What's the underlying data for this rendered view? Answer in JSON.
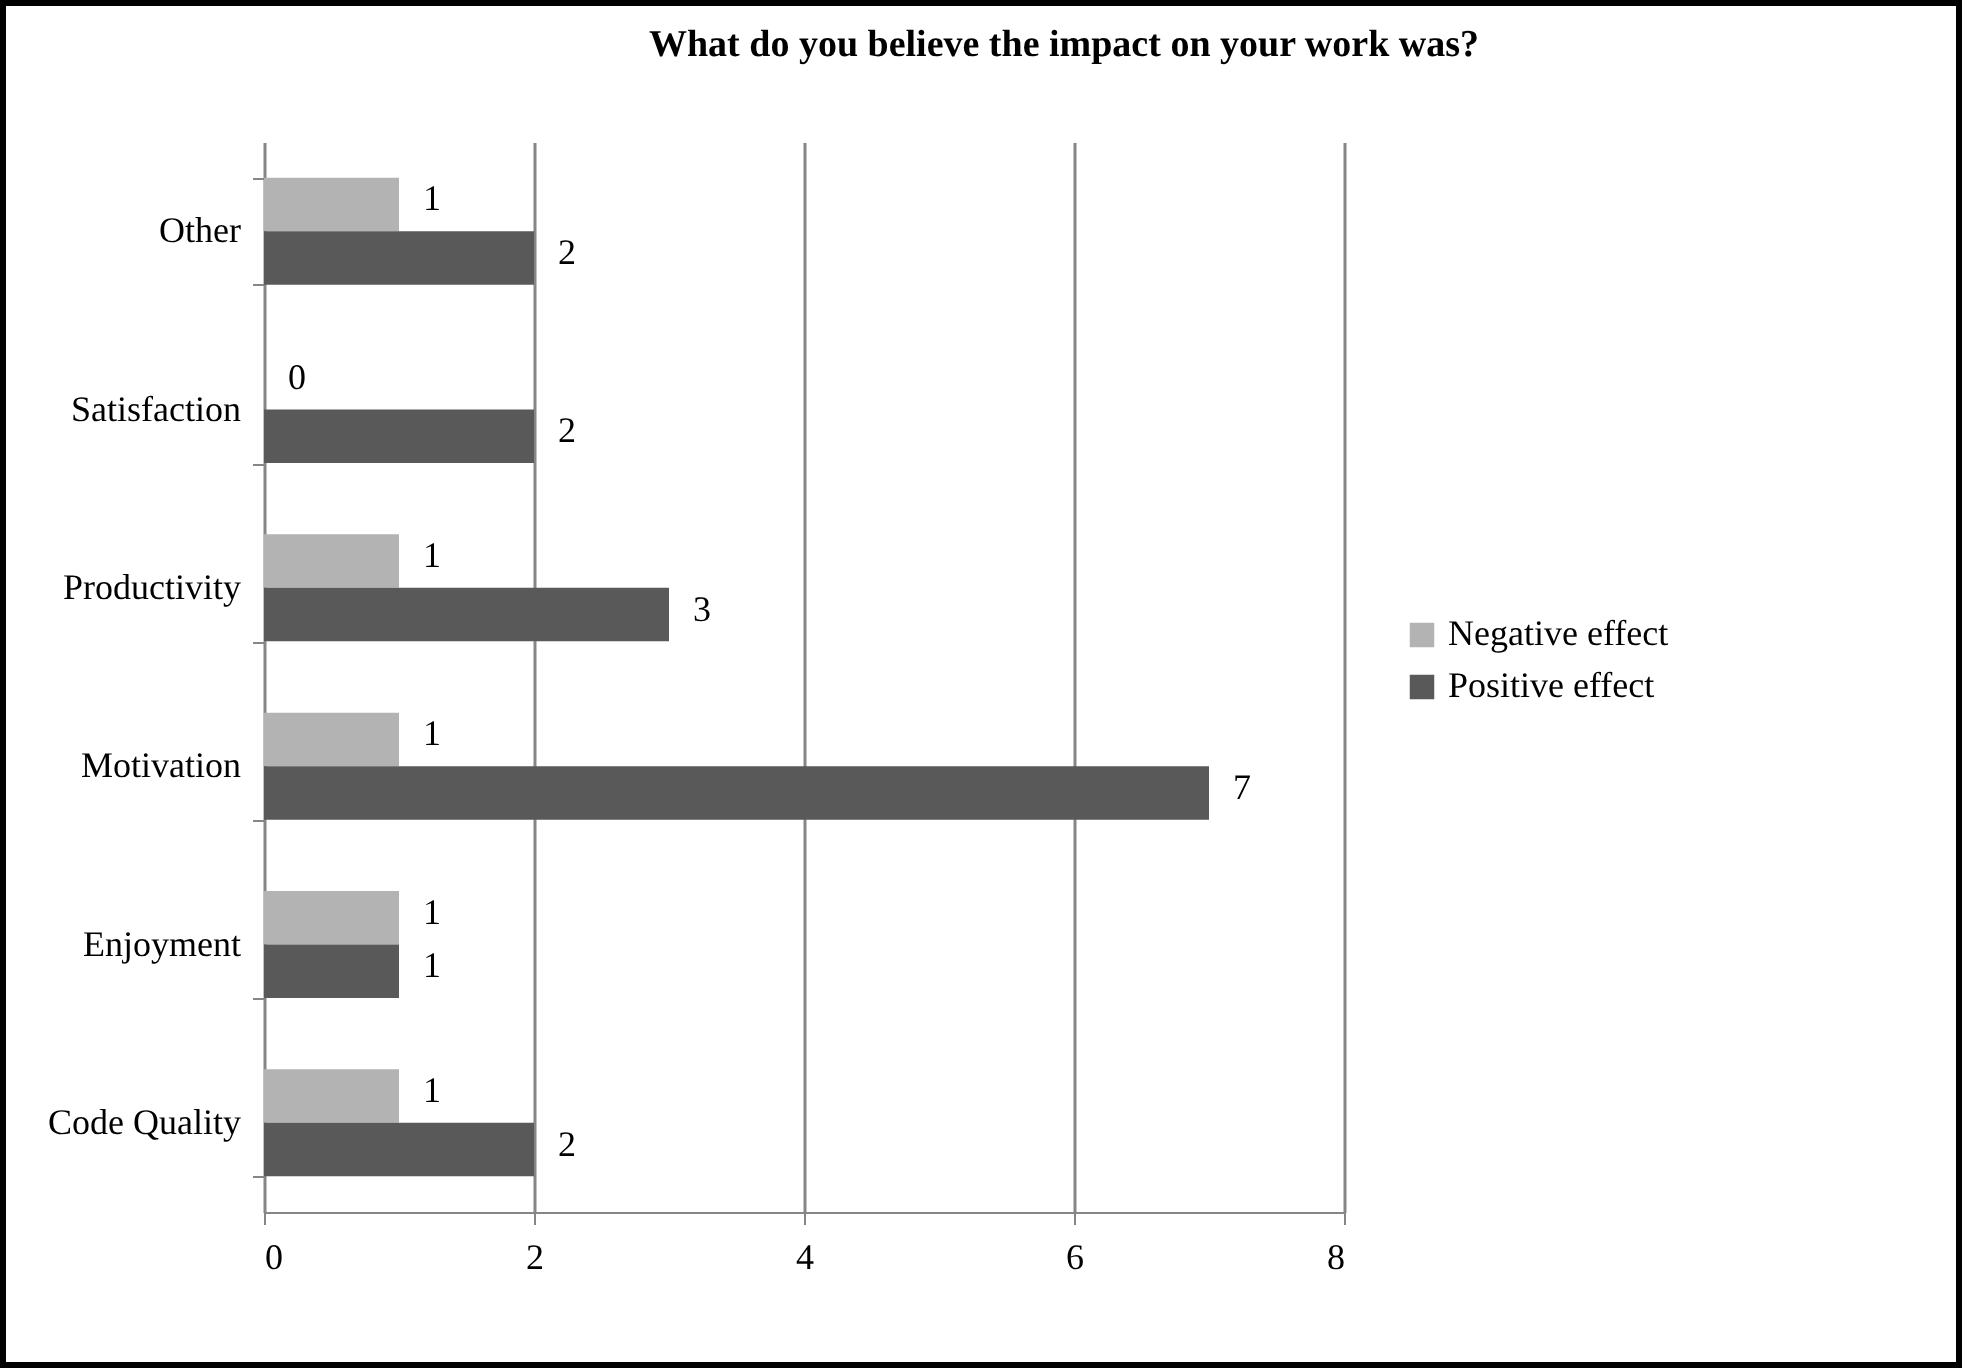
{
  "chart_data": {
    "type": "bar",
    "orientation": "horizontal",
    "title": "What do you believe the impact on your work was?",
    "categories": [
      "Other",
      "Satisfaction",
      "Productivity",
      "Motivation",
      "Enjoyment",
      "Code Quality"
    ],
    "series": [
      {
        "name": "Negative effect",
        "color": "#b3b3b3",
        "values": [
          1,
          0,
          1,
          1,
          1,
          1
        ]
      },
      {
        "name": "Positive effect",
        "color": "#595959",
        "values": [
          2,
          2,
          3,
          7,
          1,
          2
        ]
      }
    ],
    "xlim": [
      0,
      8
    ],
    "xticks": [
      0,
      2,
      4,
      6,
      8
    ],
    "grid": "x",
    "legend": "right",
    "data_labels": true
  }
}
